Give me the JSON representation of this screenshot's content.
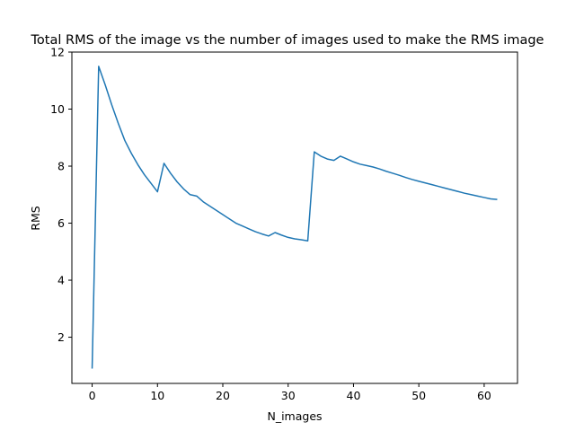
{
  "chart_data": {
    "type": "line",
    "title": "Total RMS of the image vs the number of images used to make the RMS image",
    "xlabel": "N_images",
    "ylabel": "RMS",
    "xlim": [
      -3.1,
      65.1
    ],
    "ylim": [
      0.38,
      12.0
    ],
    "xticks": [
      0,
      10,
      20,
      30,
      40,
      50,
      60
    ],
    "yticks": [
      2,
      4,
      6,
      8,
      10,
      12
    ],
    "grid": false,
    "series": [
      {
        "color": "#1f77b4",
        "x": [
          0,
          1,
          2,
          3,
          4,
          5,
          6,
          7,
          8,
          9,
          10,
          11,
          12,
          13,
          14,
          15,
          16,
          17,
          18,
          19,
          20,
          21,
          22,
          23,
          24,
          25,
          26,
          27,
          28,
          29,
          30,
          31,
          32,
          33,
          34,
          35,
          36,
          37,
          38,
          39,
          40,
          41,
          42,
          43,
          44,
          45,
          46,
          47,
          48,
          49,
          50,
          51,
          52,
          53,
          54,
          55,
          56,
          57,
          58,
          59,
          60,
          61,
          62
        ],
        "y": [
          0.9,
          11.5,
          10.85,
          10.15,
          9.5,
          8.9,
          8.45,
          8.05,
          7.7,
          7.4,
          7.1,
          8.1,
          7.75,
          7.45,
          7.2,
          7.0,
          6.95,
          6.75,
          6.6,
          6.45,
          6.3,
          6.15,
          6.0,
          5.9,
          5.8,
          5.7,
          5.62,
          5.55,
          5.67,
          5.58,
          5.5,
          5.45,
          5.42,
          5.38,
          8.5,
          8.35,
          8.25,
          8.2,
          8.35,
          8.25,
          8.15,
          8.07,
          8.02,
          7.97,
          7.9,
          7.82,
          7.75,
          7.68,
          7.6,
          7.53,
          7.47,
          7.41,
          7.35,
          7.29,
          7.23,
          7.17,
          7.11,
          7.05,
          7.0,
          6.95,
          6.9,
          6.85,
          6.83
        ]
      }
    ]
  }
}
